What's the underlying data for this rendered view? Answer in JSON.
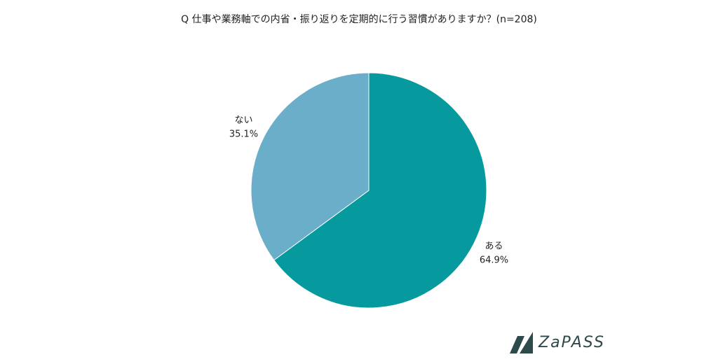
{
  "chart_data": {
    "type": "pie",
    "title": "Q 仕事や業務軸での内省・振り返りを定期的に行う習慣がありますか？(n=208)",
    "categories": [
      "ある",
      "ない"
    ],
    "values": [
      64.9,
      35.1
    ],
    "value_labels": [
      "64.9%",
      "35.1%"
    ],
    "colors": [
      "#069a9e",
      "#6aaec9"
    ]
  },
  "logo": "ZaPASS"
}
